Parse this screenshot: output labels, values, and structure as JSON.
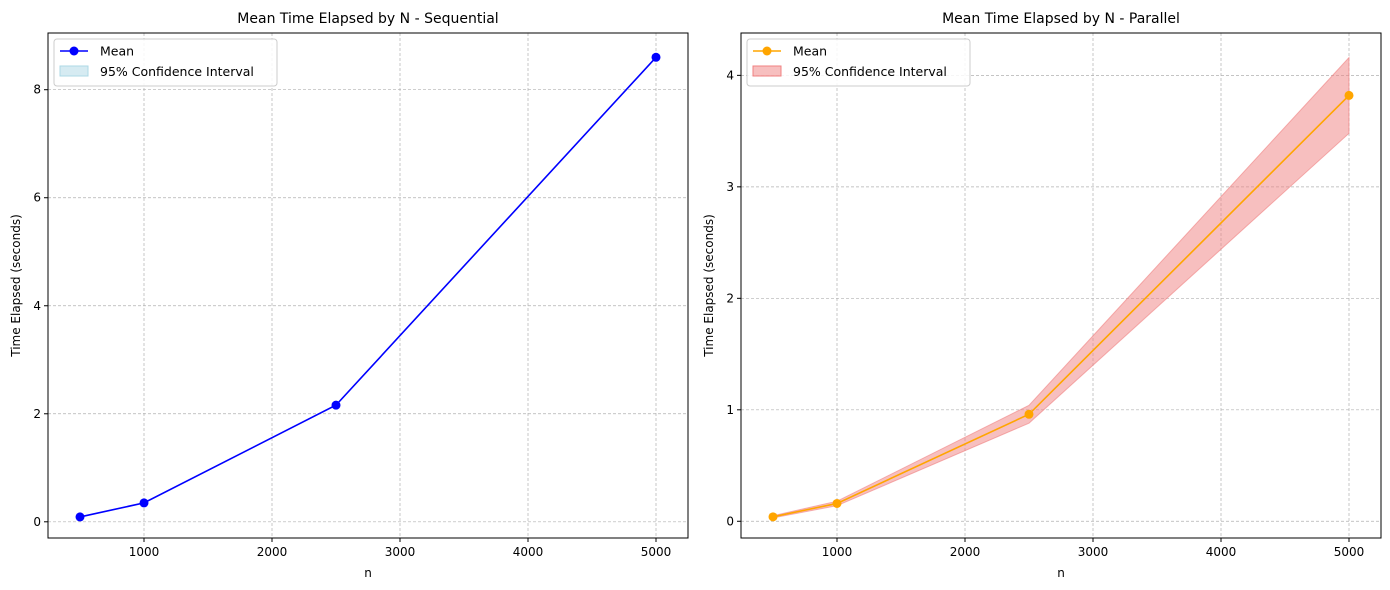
{
  "chart_data": [
    {
      "type": "line",
      "title": "Mean Time Elapsed by N - Sequential",
      "xlabel": "n",
      "ylabel": "Time Elapsed (seconds)",
      "xlim": [
        250,
        5250
      ],
      "ylim": [
        -0.3,
        9.05
      ],
      "xticks": [
        1000,
        2000,
        3000,
        4000,
        5000
      ],
      "yticks": [
        0,
        2,
        4,
        6,
        8
      ],
      "grid": true,
      "legend_position": "top-left",
      "x": [
        500,
        1000,
        2500,
        5000
      ],
      "series": [
        {
          "name": "Mean",
          "values": [
            0.09,
            0.35,
            2.16,
            8.6
          ],
          "color": "#0000ff",
          "marker": "circle"
        }
      ],
      "confidence_interval": {
        "name": "95% Confidence Interval",
        "color": "#add8e6",
        "lower": [
          0.09,
          0.35,
          2.16,
          8.6
        ],
        "upper": [
          0.09,
          0.35,
          2.16,
          8.6
        ]
      }
    },
    {
      "type": "line",
      "title": "Mean Time Elapsed by N - Parallel",
      "xlabel": "n",
      "ylabel": "Time Elapsed (seconds)",
      "xlim": [
        250,
        5250
      ],
      "ylim": [
        -0.15,
        4.38
      ],
      "xticks": [
        1000,
        2000,
        3000,
        4000,
        5000
      ],
      "yticks": [
        0,
        1,
        2,
        3,
        4
      ],
      "grid": true,
      "legend_position": "top-left",
      "x": [
        500,
        1000,
        2500,
        5000
      ],
      "series": [
        {
          "name": "Mean",
          "values": [
            0.04,
            0.16,
            0.96,
            3.82
          ],
          "color": "#ffa500",
          "marker": "circle"
        }
      ],
      "confidence_interval": {
        "name": "95% Confidence Interval",
        "color": "#f08080",
        "lower": [
          0.03,
          0.14,
          0.88,
          3.48
        ],
        "upper": [
          0.05,
          0.18,
          1.04,
          4.16
        ]
      }
    }
  ]
}
